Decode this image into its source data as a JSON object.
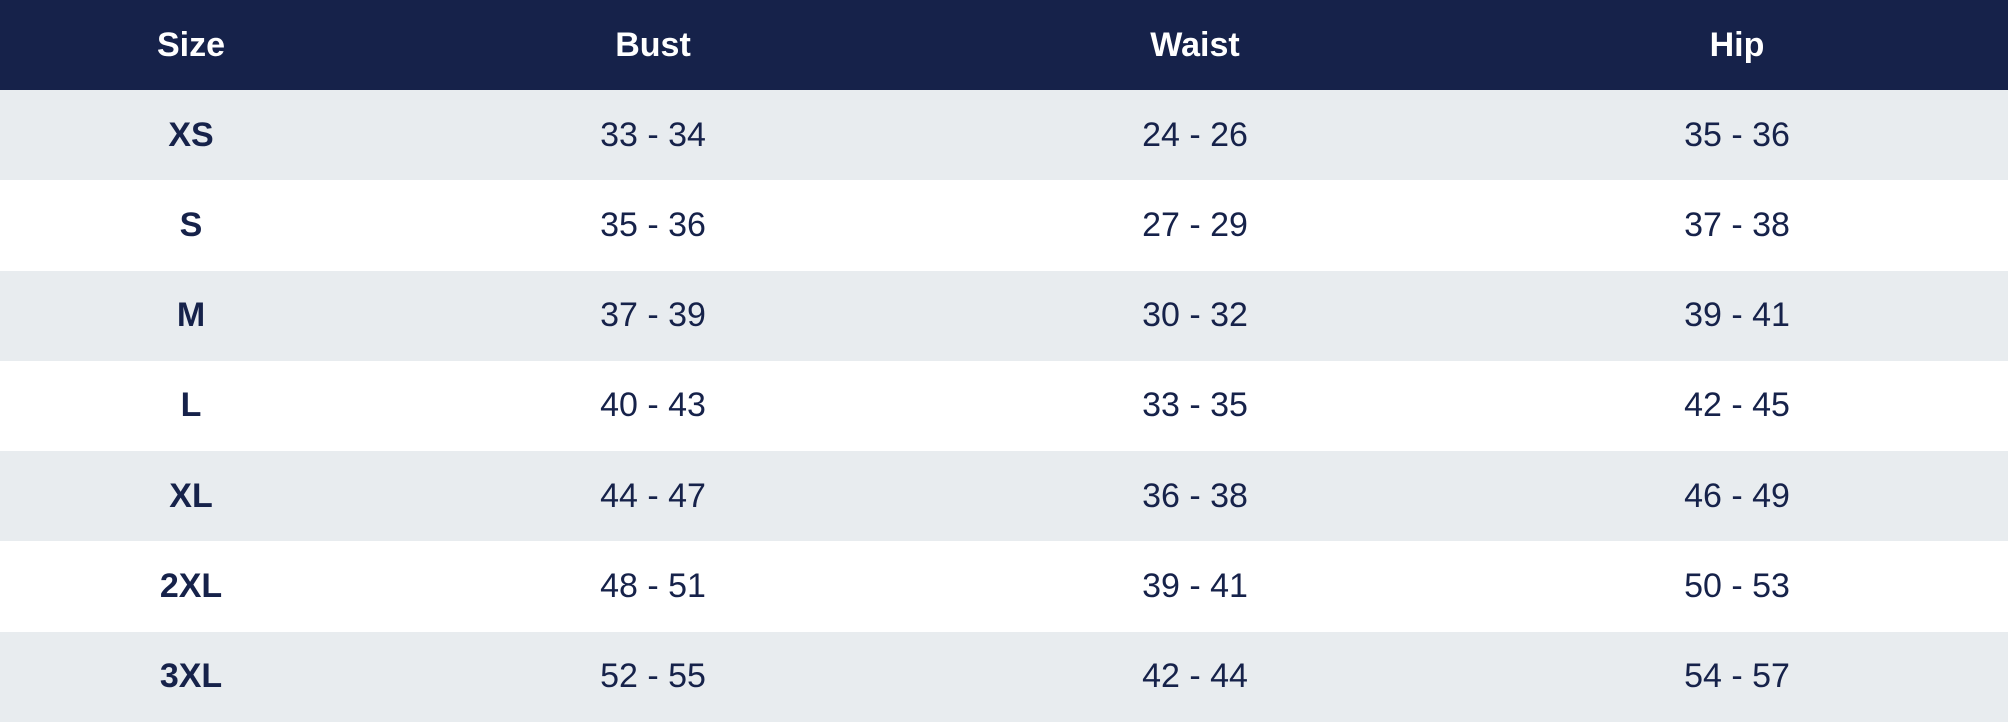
{
  "table": {
    "headers": {
      "size": "Size",
      "bust": "Bust",
      "waist": "Waist",
      "hip": "Hip"
    },
    "rows": [
      {
        "size": "XS",
        "bust": "33 - 34",
        "waist": "24 - 26",
        "hip": "35 - 36"
      },
      {
        "size": "S",
        "bust": "35 - 36",
        "waist": "27 - 29",
        "hip": "37 - 38"
      },
      {
        "size": "M",
        "bust": "37 - 39",
        "waist": "30 - 32",
        "hip": "39 - 41"
      },
      {
        "size": "L",
        "bust": "40 - 43",
        "waist": "33 - 35",
        "hip": "42 - 45"
      },
      {
        "size": "XL",
        "bust": "44 - 47",
        "waist": "36 - 38",
        "hip": "46 - 49"
      },
      {
        "size": "2XL",
        "bust": "48 - 51",
        "waist": "39 - 41",
        "hip": "50 - 53"
      },
      {
        "size": "3XL",
        "bust": "52 - 55",
        "waist": "42 - 44",
        "hip": "54 - 57"
      }
    ]
  },
  "colors": {
    "header_background": "#16224a",
    "header_text": "#ffffff",
    "row_alt_background": "#e8ecef",
    "row_background": "#ffffff",
    "body_text": "#16224a"
  }
}
